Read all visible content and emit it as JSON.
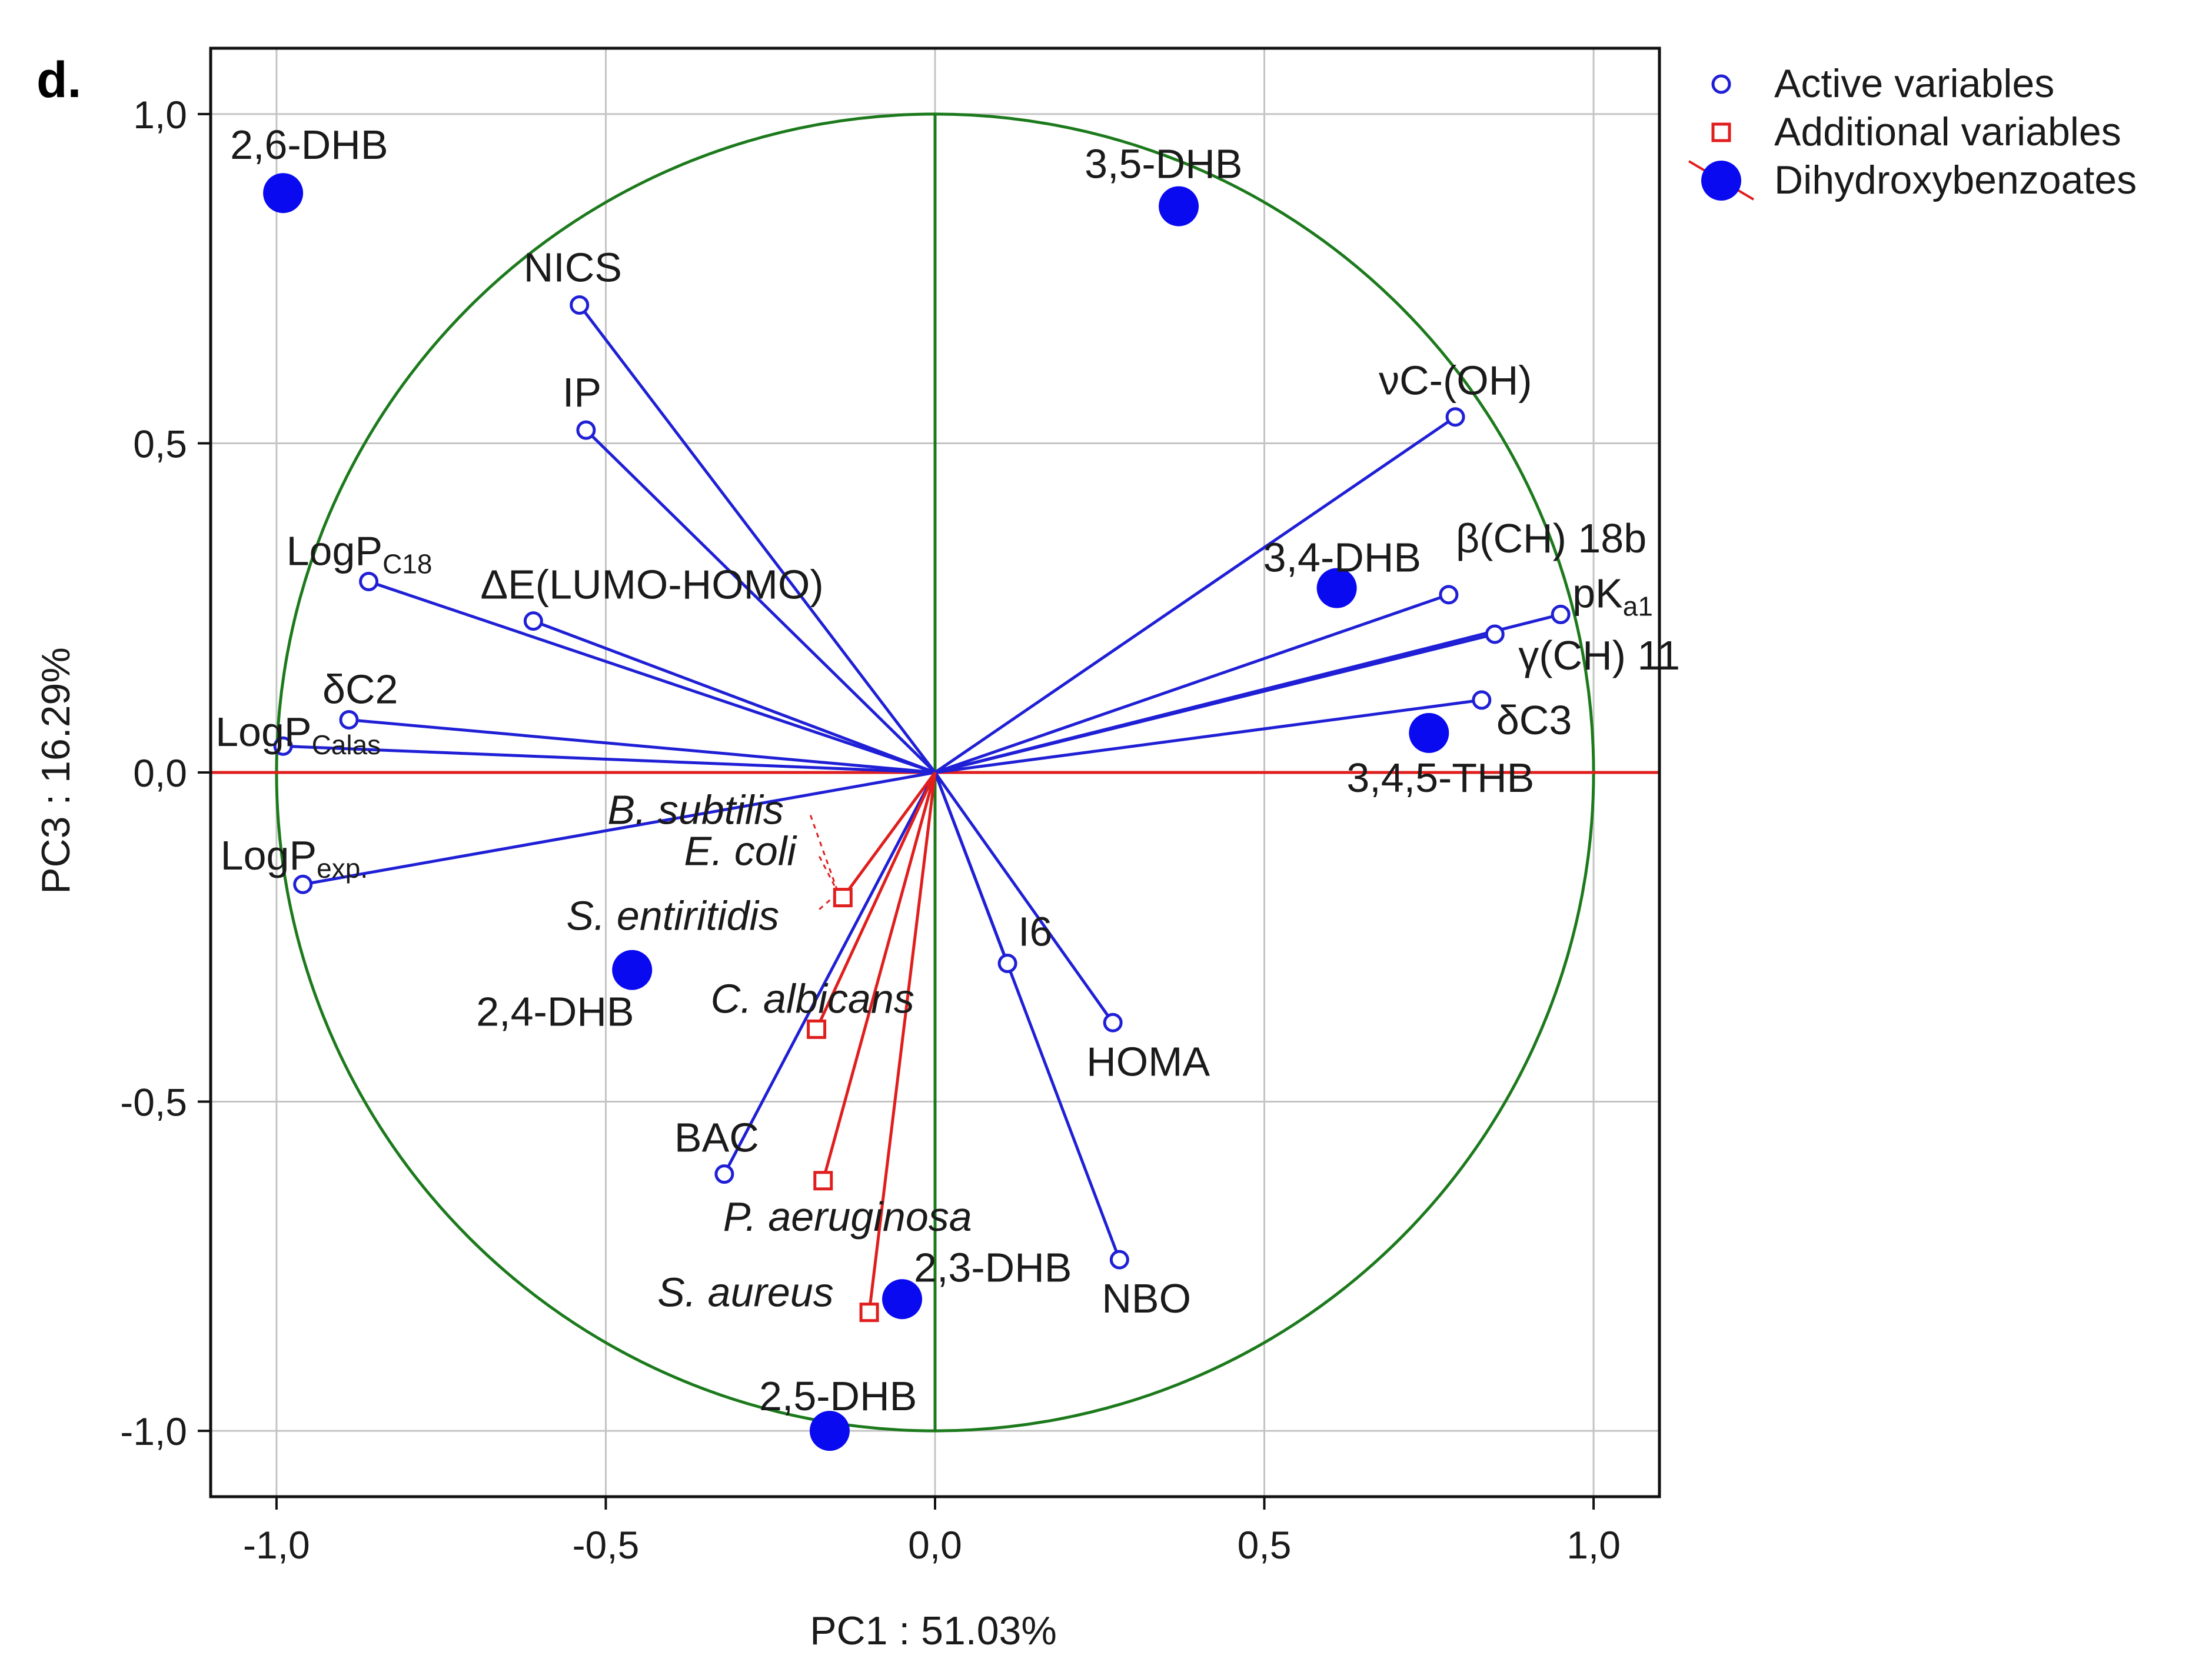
{
  "panel_label": "d.",
  "chart_data": {
    "type": "scatter",
    "subtype": "pca-correlation-circle",
    "xlabel": "PC1 : 51.03%",
    "ylabel": "PC3 : 16.29%",
    "xlim": [
      -1.1,
      1.1
    ],
    "ylim": [
      -1.1,
      1.1
    ],
    "xticks": [
      -1.0,
      -0.5,
      0.0,
      0.5,
      1.0
    ],
    "yticks": [
      -1.0,
      -0.5,
      0.0,
      0.5,
      1.0
    ],
    "xtick_labels": [
      "-1,0",
      "-0,5",
      "0,0",
      "0,5",
      "1,0"
    ],
    "ytick_labels": [
      "-1,0",
      "-0,5",
      "0,0",
      "0,5",
      "1,0"
    ],
    "grid": true,
    "unit_circle": true,
    "colors": {
      "active": "#1f1fd6",
      "additional": "#e01e1e",
      "compound": "#0a0af0",
      "circle": "#1c7a1c",
      "hline": "#e01e1e",
      "vline": "#1c7a1c",
      "grid": "#c4c4c4"
    },
    "legend": [
      {
        "label": "Active variables",
        "marker": "open-circle"
      },
      {
        "label": "Additional variables",
        "marker": "open-square"
      },
      {
        "label": "Dihydroxybenzoates",
        "marker": "filled-circle"
      }
    ],
    "active_variables": [
      {
        "label": "NICS",
        "x": -0.54,
        "y": 0.71
      },
      {
        "label": "IP",
        "x": -0.53,
        "y": 0.52
      },
      {
        "label": "LogPC18",
        "label_main": "LogP",
        "label_sub": "C18",
        "x": -0.86,
        "y": 0.29
      },
      {
        "label": "ΔE(LUMO-HOMO)",
        "x": -0.61,
        "y": 0.23
      },
      {
        "label": "δC2",
        "x": -0.89,
        "y": 0.08
      },
      {
        "label": "LogPCalas",
        "label_main": "LogP",
        "label_sub": "Calas",
        "x": -0.99,
        "y": 0.04
      },
      {
        "label": "LogPexp.",
        "label_main": "LogP",
        "label_sub": "exp.",
        "x": -0.96,
        "y": -0.17
      },
      {
        "label": "νC-(OH)",
        "x": 0.79,
        "y": 0.54
      },
      {
        "label": "β(CH) 18b",
        "x": 0.78,
        "y": 0.27
      },
      {
        "label": "pKa1",
        "label_main": "pK",
        "label_sub": "a1",
        "x": 0.95,
        "y": 0.24
      },
      {
        "label": "γ(CH) 11",
        "x": 0.85,
        "y": 0.21
      },
      {
        "label": "δC3",
        "x": 0.83,
        "y": 0.11
      },
      {
        "label": "I6",
        "x": 0.11,
        "y": -0.29
      },
      {
        "label": "HOMA",
        "x": 0.27,
        "y": -0.38
      },
      {
        "label": "NBO",
        "x": 0.28,
        "y": -0.74
      },
      {
        "label": "BAC",
        "x": -0.32,
        "y": -0.61
      }
    ],
    "additional_variables": [
      {
        "label": "B. subtilis",
        "x": -0.14,
        "y": -0.19
      },
      {
        "label": "E. coli",
        "x": -0.14,
        "y": -0.19
      },
      {
        "label": "S. entiritidis",
        "x": -0.14,
        "y": -0.19
      },
      {
        "label": "C. albicans",
        "x": -0.18,
        "y": -0.39
      },
      {
        "label": "P. aeruginosa",
        "x": -0.17,
        "y": -0.62
      },
      {
        "label": "S. aureus",
        "x": -0.1,
        "y": -0.82
      }
    ],
    "compounds": [
      {
        "label": "2,6-DHB",
        "x": -0.99,
        "y": 0.88
      },
      {
        "label": "3,5-DHB",
        "x": 0.37,
        "y": 0.86
      },
      {
        "label": "3,4-DHB",
        "x": 0.61,
        "y": 0.28
      },
      {
        "label": "3,4,5-THB",
        "x": 0.75,
        "y": 0.06
      },
      {
        "label": "2,4-DHB",
        "x": -0.46,
        "y": -0.3
      },
      {
        "label": "2,3-DHB",
        "x": -0.05,
        "y": -0.8
      },
      {
        "label": "2,5-DHB",
        "x": -0.16,
        "y": -1.0
      }
    ]
  }
}
